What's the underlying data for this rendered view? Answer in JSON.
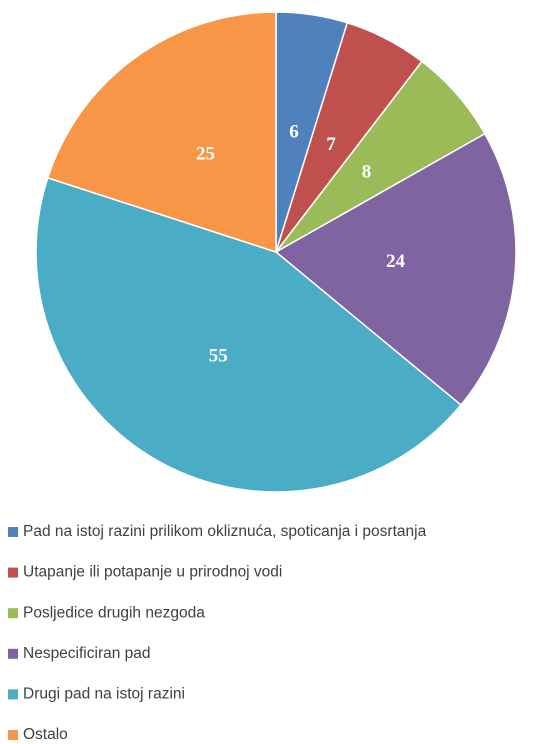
{
  "chart_data": {
    "type": "pie",
    "categories": [
      "Pad na istoj razini prilikom okliznuća, spoticanja i posrtanja",
      "Utapanje ili potapanje u prirodnoj vodi",
      "Posljedice drugih nezgoda",
      "Nespecificiran pad",
      "Drugi pad na istoj razini",
      "Ostalo"
    ],
    "values": [
      6,
      7,
      8,
      24,
      55,
      25
    ],
    "colors": [
      "#4f81bd",
      "#c0504d",
      "#9bbb59",
      "#8064a2",
      "#4bacc6",
      "#f79646"
    ]
  }
}
